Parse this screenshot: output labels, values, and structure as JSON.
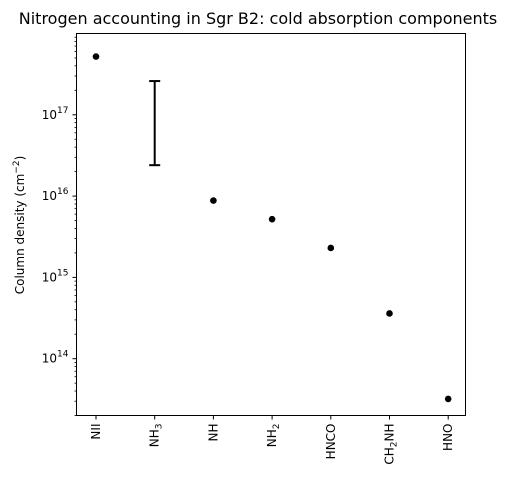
{
  "chart_data": {
    "type": "scatter",
    "title": "Nitrogen accounting in Sgr B2: cold absorption components",
    "xlabel": "",
    "ylabel": "Column density (cm",
    "ylabel_sup": "−2",
    "ylabel_close": ")",
    "y_scale": "log",
    "ylim": [
      20000000000000.0,
      1e+18
    ],
    "y_ticks": [
      {
        "value": 100000000000000.0,
        "base": "10",
        "exp": "14"
      },
      {
        "value": 1000000000000000.0,
        "base": "10",
        "exp": "15"
      },
      {
        "value": 1e+16,
        "base": "10",
        "exp": "16"
      },
      {
        "value": 1e+17,
        "base": "10",
        "exp": "17"
      }
    ],
    "categories": [
      {
        "main": "NII",
        "sub": "",
        "rest": ""
      },
      {
        "main": "NH",
        "sub": "3",
        "rest": ""
      },
      {
        "main": "NH",
        "sub": "",
        "rest": ""
      },
      {
        "main": "NH",
        "sub": "2",
        "rest": ""
      },
      {
        "main": "HNCO",
        "sub": "",
        "rest": ""
      },
      {
        "main": "CH",
        "sub": "2",
        "rest": "NH"
      },
      {
        "main": "HNO",
        "sub": "",
        "rest": ""
      }
    ],
    "points": [
      {
        "category": 0,
        "value": 5.2e+17
      },
      {
        "category": 2,
        "value": 8800000000000000.0
      },
      {
        "category": 3,
        "value": 5200000000000000.0
      },
      {
        "category": 4,
        "value": 2300000000000000.0
      },
      {
        "category": 5,
        "value": 360000000000000.0
      },
      {
        "category": 6,
        "value": 32000000000000.0
      }
    ],
    "ranges": [
      {
        "category": 1,
        "low": 2.4e+16,
        "high": 2.6e+17
      }
    ],
    "grid": false,
    "legend": "none",
    "colors": {
      "marker": "#000000",
      "axis": "#000000"
    }
  }
}
